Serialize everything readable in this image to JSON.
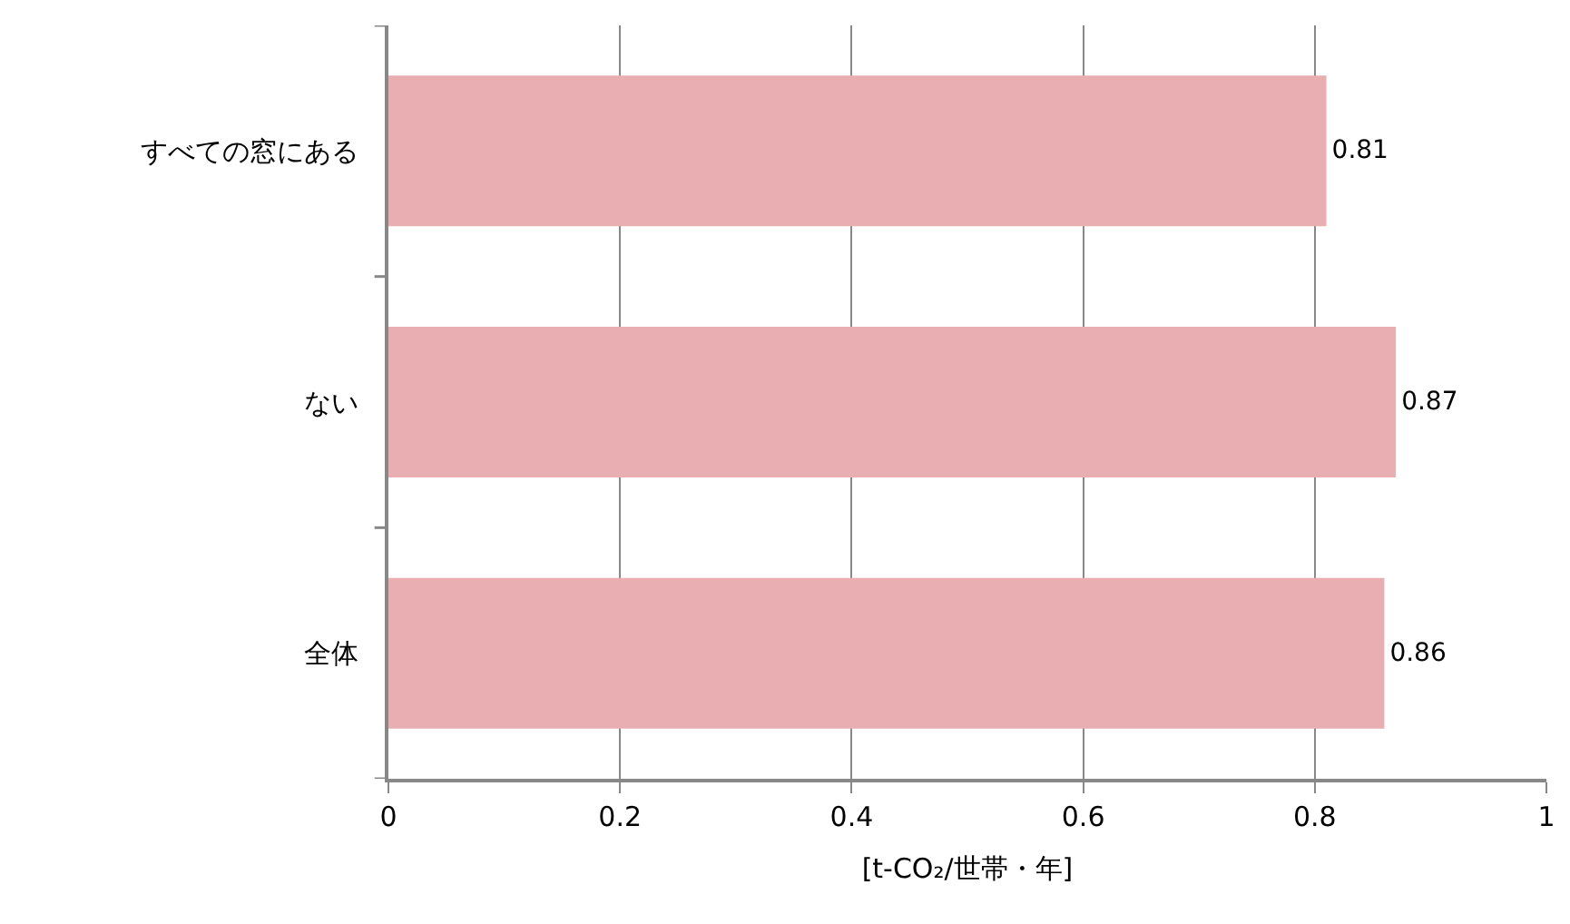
{
  "chart_data": {
    "type": "bar",
    "orientation": "horizontal",
    "categories": [
      "すべての窓にある",
      "ない",
      "全体"
    ],
    "values": [
      0.81,
      0.87,
      0.86
    ],
    "color": "#e9aeb1",
    "xlabel": "[t-CO₂/世帯・年]",
    "xlim": [
      0,
      1
    ],
    "xticks": [
      0,
      0.2,
      0.4,
      0.6,
      0.8,
      1
    ],
    "grid": "x",
    "data_labels": true
  }
}
